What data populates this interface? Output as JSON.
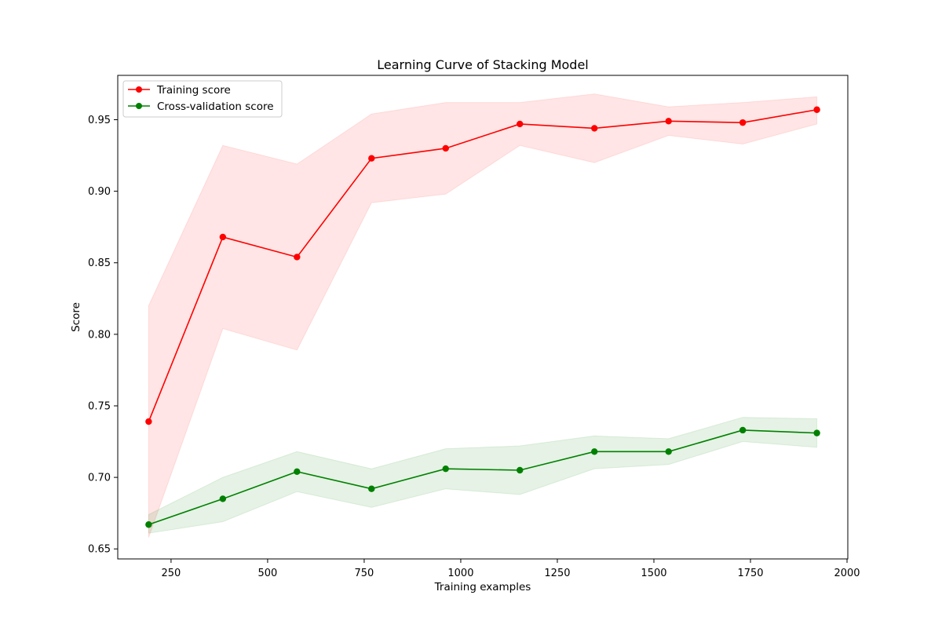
{
  "chart_data": {
    "type": "line",
    "title": "Learning Curve of Stacking Model",
    "xlabel": "Training examples",
    "ylabel": "Score",
    "xlim": [
      112,
      2002
    ],
    "ylim": [
      0.643,
      0.981
    ],
    "xticks": [
      250,
      500,
      750,
      1000,
      1250,
      1500,
      1750,
      2000
    ],
    "yticks": [
      0.65,
      0.7,
      0.75,
      0.8,
      0.85,
      0.9,
      0.95
    ],
    "grid": false,
    "legend_position": "upper-left",
    "x": [
      192,
      384,
      576,
      769,
      961,
      1153,
      1346,
      1538,
      1730,
      1922
    ],
    "series": [
      {
        "name": "Training score",
        "color": "#ff0000",
        "band_color": "#ff0000",
        "values": [
          0.739,
          0.868,
          0.854,
          0.923,
          0.93,
          0.947,
          0.944,
          0.949,
          0.948,
          0.957
        ],
        "lower": [
          0.658,
          0.804,
          0.789,
          0.892,
          0.898,
          0.932,
          0.92,
          0.939,
          0.933,
          0.947
        ],
        "upper": [
          0.82,
          0.932,
          0.919,
          0.954,
          0.962,
          0.962,
          0.968,
          0.959,
          0.962,
          0.966
        ]
      },
      {
        "name": "Cross-validation score",
        "color": "#008000",
        "band_color": "#008000",
        "values": [
          0.667,
          0.685,
          0.704,
          0.692,
          0.706,
          0.705,
          0.718,
          0.718,
          0.733,
          0.731
        ],
        "lower": [
          0.661,
          0.669,
          0.69,
          0.679,
          0.692,
          0.688,
          0.706,
          0.709,
          0.725,
          0.721
        ],
        "upper": [
          0.674,
          0.7,
          0.718,
          0.706,
          0.72,
          0.722,
          0.729,
          0.727,
          0.742,
          0.741
        ]
      }
    ]
  }
}
